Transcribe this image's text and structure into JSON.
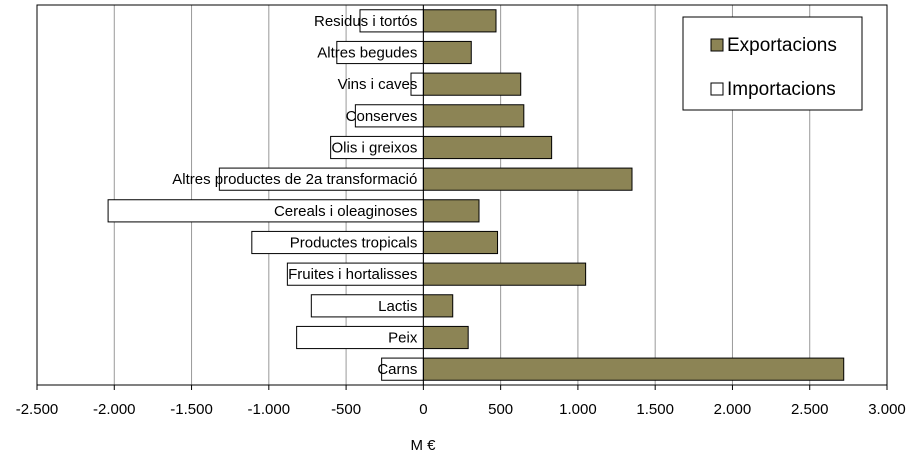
{
  "chart_data": {
    "type": "bar",
    "orientation": "horizontal",
    "x_label": "M €",
    "categories": [
      "Residus i tortós",
      "Altres begudes",
      "Vins i caves",
      "Conserves",
      "Olis i greixos",
      "Altres productes de 2a transformació",
      "Cereals i oleaginoses",
      "Productes tropicals",
      "Fruites i hortalisses",
      "Lactis",
      "Peix",
      "Carns"
    ],
    "series": [
      {
        "name": "Exportacions",
        "color": "#8c8455",
        "values": [
          470,
          310,
          630,
          650,
          830,
          1350,
          360,
          480,
          1050,
          190,
          290,
          2720
        ]
      },
      {
        "name": "Importacions",
        "color": "#ffffff",
        "values": [
          -410,
          -560,
          -80,
          -440,
          -600,
          -1320,
          -2040,
          -1110,
          -880,
          -725,
          -820,
          -270
        ]
      }
    ],
    "xlim": [
      -2500,
      3000
    ],
    "xticks": [
      {
        "value": -2500,
        "label": "-2.500"
      },
      {
        "value": -2000,
        "label": "-2.000"
      },
      {
        "value": -1500,
        "label": "-1.500"
      },
      {
        "value": -1000,
        "label": "-1.000"
      },
      -500,
      0,
      500,
      {
        "value": 1000,
        "label": "1.000"
      },
      {
        "value": 1500,
        "label": "1.500"
      },
      {
        "value": 2000,
        "label": "2.000"
      },
      {
        "value": 2500,
        "label": "2.500"
      },
      {
        "value": 3000,
        "label": "3.000"
      }
    ],
    "grid": true,
    "legend": "top-right"
  }
}
